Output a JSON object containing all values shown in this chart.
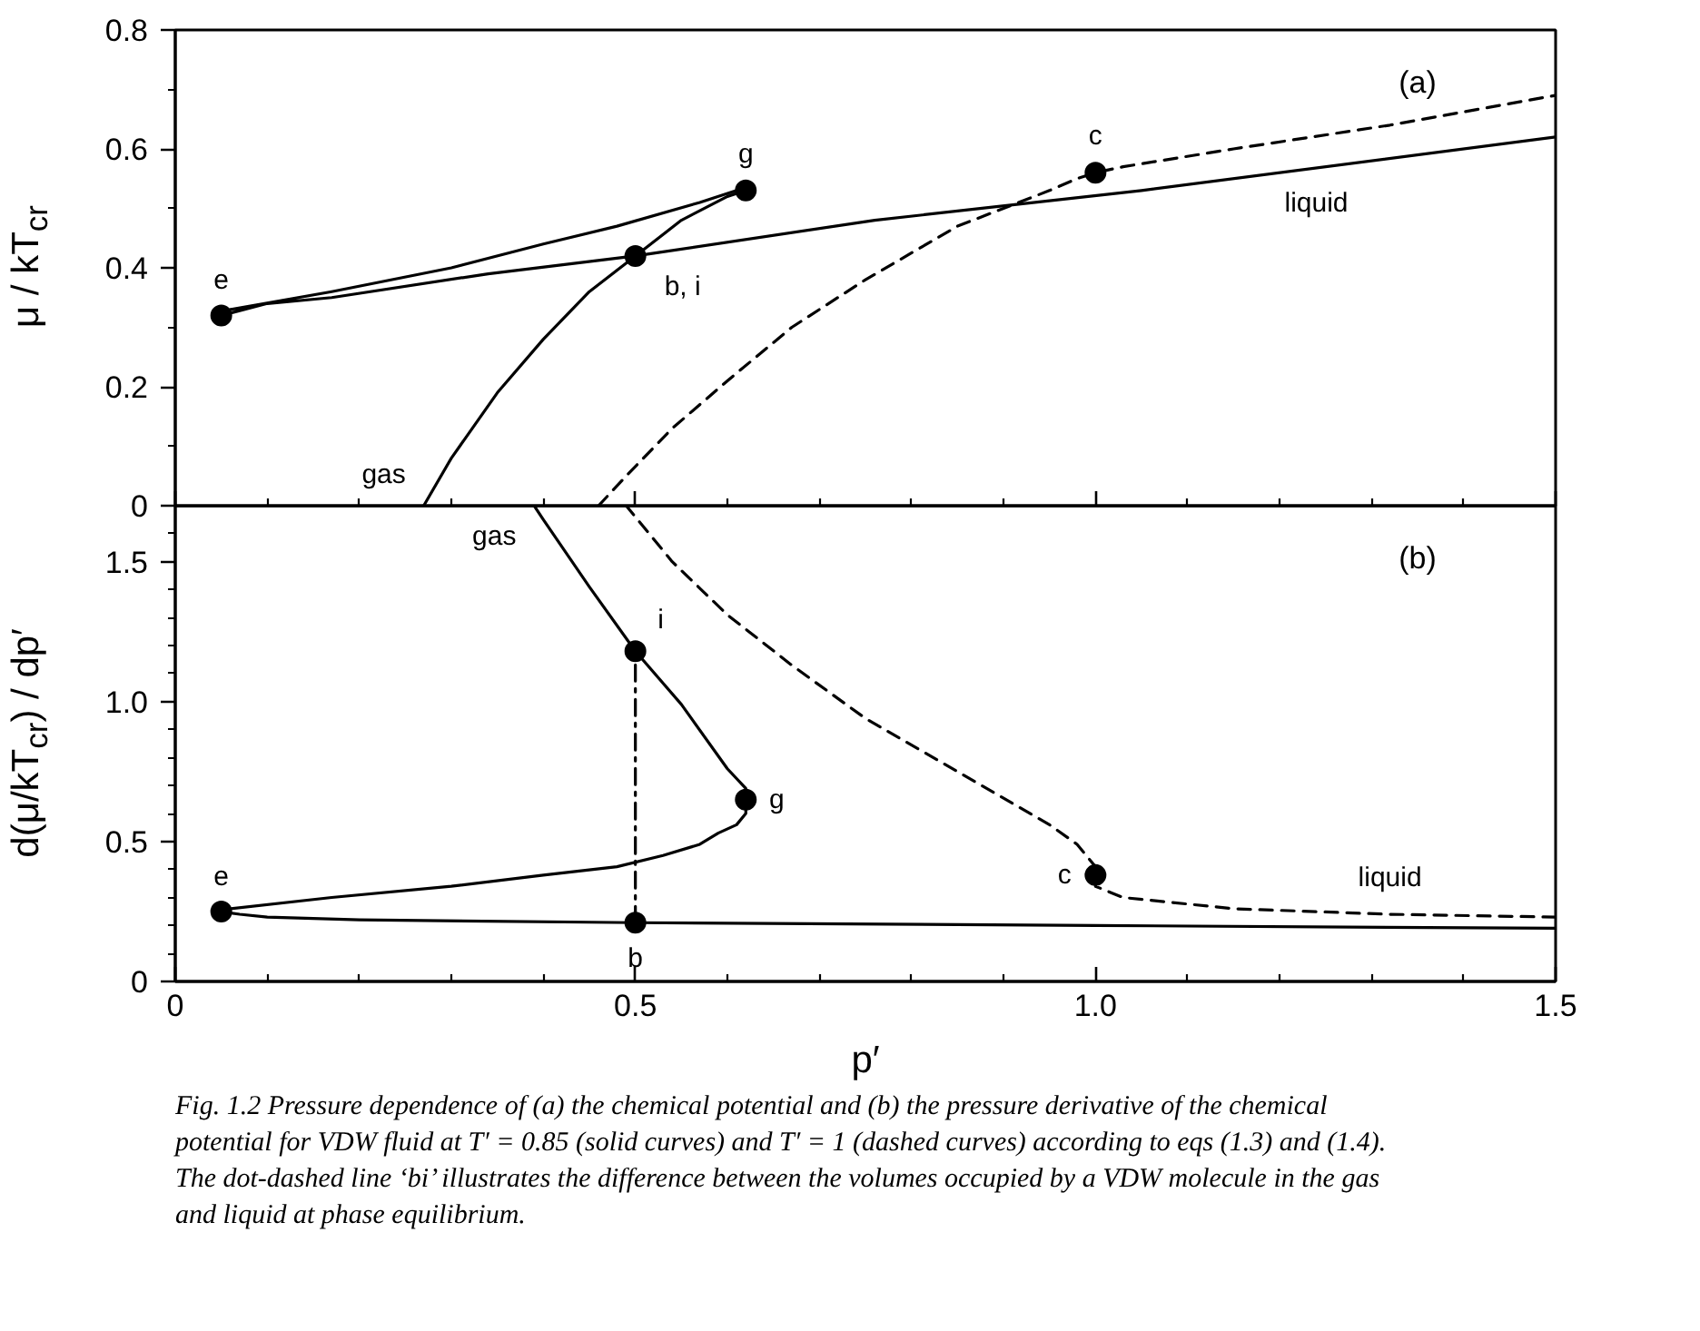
{
  "chart_data": [
    {
      "type": "line",
      "title": "(a)",
      "ylabel": "μ / kT$_{cr}$",
      "xlim": [
        0,
        1.5
      ],
      "ylim": [
        0,
        0.8
      ],
      "xticks": [
        0,
        {
          "value": 0.1,
          "label": null
        },
        {
          "value": 0.2,
          "label": null
        },
        {
          "value": 0.3,
          "label": null
        },
        {
          "value": 0.4,
          "label": null
        },
        0.5,
        {
          "value": 0.6,
          "label": null
        },
        {
          "value": 0.7,
          "label": null
        },
        {
          "value": 0.8,
          "label": null
        },
        {
          "value": 0.9,
          "label": null
        },
        {
          "value": 1,
          "label": "1.0"
        },
        {
          "value": 1.1,
          "label": null
        },
        {
          "value": 1.2,
          "label": null
        },
        {
          "value": 1.3,
          "label": null
        },
        {
          "value": 1.4,
          "label": null
        },
        1.5
      ],
      "yticks": [
        0,
        {
          "value": 0.1,
          "label": null
        },
        0.2,
        {
          "value": 0.3,
          "label": null
        },
        0.4,
        {
          "value": 0.5,
          "label": null
        },
        0.6,
        {
          "value": 0.7,
          "label": null
        },
        0.8
      ],
      "tick_labels": "y",
      "grid": false,
      "series": [
        {
          "color": "#000000",
          "line_style": "solid",
          "x": [
            0.27,
            0.3,
            0.35,
            0.4,
            0.45,
            0.5,
            0.55,
            0.6,
            0.62,
            0.61,
            0.57,
            0.48,
            0.4,
            0.3,
            0.17,
            0.06,
            0.05,
            0.1,
            0.17,
            0.34,
            0.5,
            0.76,
            1.05,
            1.5
          ],
          "values": [
            0.0,
            0.08,
            0.19,
            0.28,
            0.36,
            0.42,
            0.48,
            0.52,
            0.53,
            0.53,
            0.51,
            0.47,
            0.44,
            0.4,
            0.36,
            0.33,
            0.32,
            0.34,
            0.35,
            0.39,
            0.42,
            0.48,
            0.53,
            0.62
          ]
        },
        {
          "color": "#000000",
          "line_style": "dashed",
          "x": [
            0.46,
            0.49,
            0.54,
            0.6,
            0.67,
            0.75,
            0.85,
            0.95,
            0.98,
            1.0,
            1.03,
            1.15,
            1.32,
            1.5
          ],
          "values": [
            0.0,
            0.05,
            0.13,
            0.21,
            0.3,
            0.38,
            0.47,
            0.53,
            0.55,
            0.56,
            0.57,
            0.6,
            0.64,
            0.69
          ]
        },
        {
          "type": "scatter",
          "marker": "circle",
          "color": "#000000",
          "x": [
            0.05,
            0.5,
            0.62,
            1.0
          ],
          "values": [
            0.32,
            0.42,
            0.53,
            0.56
          ]
        }
      ],
      "annotations": [
        {
          "text": "e",
          "x": 0.05,
          "y": 0.32
        },
        {
          "text": "b, i",
          "x": 0.5,
          "y": 0.42
        },
        {
          "text": "g",
          "x": 0.62,
          "y": 0.53
        },
        {
          "text": "c",
          "x": 1.0,
          "y": 0.56
        },
        {
          "text": "gas",
          "x": 0.27,
          "y": 0.0
        },
        {
          "text": "liquid",
          "x": 1.24,
          "y": 0.57
        }
      ]
    },
    {
      "type": "line",
      "title": "(b)",
      "xlabel": "p′",
      "ylabel": "d(μ/kT$_{cr}$) / dp′",
      "xlim": [
        0,
        1.5
      ],
      "ylim": [
        0,
        1.7
      ],
      "xticks": [
        0,
        {
          "value": 0.1,
          "label": null
        },
        {
          "value": 0.2,
          "label": null
        },
        {
          "value": 0.3,
          "label": null
        },
        {
          "value": 0.4,
          "label": null
        },
        0.5,
        {
          "value": 0.6,
          "label": null
        },
        {
          "value": 0.7,
          "label": null
        },
        {
          "value": 0.8,
          "label": null
        },
        {
          "value": 0.9,
          "label": null
        },
        {
          "value": 1,
          "label": "1.0"
        },
        {
          "value": 1.1,
          "label": null
        },
        {
          "value": 1.2,
          "label": null
        },
        {
          "value": 1.3,
          "label": null
        },
        {
          "value": 1.4,
          "label": null
        },
        1.5
      ],
      "yticks": [
        0,
        {
          "value": 0.1,
          "label": null
        },
        {
          "value": 0.2,
          "label": null
        },
        {
          "value": 0.3,
          "label": null
        },
        {
          "value": 0.4,
          "label": null
        },
        0.5,
        {
          "value": 0.6,
          "label": null
        },
        {
          "value": 0.7,
          "label": null
        },
        {
          "value": 0.8,
          "label": null
        },
        {
          "value": 0.9,
          "label": null
        },
        {
          "value": 1,
          "label": "1.0"
        },
        {
          "value": 1.1,
          "label": null
        },
        {
          "value": 1.2,
          "label": null
        },
        {
          "value": 1.3,
          "label": null
        },
        {
          "value": 1.4,
          "label": null
        },
        1.5,
        {
          "value": 1.6,
          "label": null
        }
      ],
      "grid": false,
      "series": [
        {
          "color": "#000000",
          "line_style": "solid",
          "x": [
            1.5,
            1.0,
            0.5,
            0.2,
            0.1,
            0.07,
            0.05,
            0.06,
            0.17,
            0.3,
            0.4,
            0.48,
            0.53,
            0.57,
            0.59,
            0.61,
            0.62,
            0.62,
            0.62,
            0.6,
            0.55,
            0.5,
            0.45,
            0.4,
            0.39
          ],
          "values": [
            0.19,
            0.2,
            0.21,
            0.22,
            0.23,
            0.24,
            0.25,
            0.26,
            0.3,
            0.34,
            0.38,
            0.41,
            0.45,
            0.49,
            0.53,
            0.56,
            0.6,
            0.65,
            0.69,
            0.76,
            0.99,
            1.18,
            1.41,
            1.65,
            1.7
          ]
        },
        {
          "color": "#000000",
          "line_style": "dashed",
          "x": [
            1.5,
            1.32,
            1.15,
            1.03,
            1.0,
            1.0,
            1.0,
            0.98,
            0.95,
            0.85,
            0.75,
            0.67,
            0.6,
            0.54,
            0.49
          ],
          "values": [
            0.23,
            0.24,
            0.26,
            0.3,
            0.34,
            0.38,
            0.41,
            0.49,
            0.56,
            0.75,
            0.94,
            1.13,
            1.31,
            1.5,
            1.7
          ]
        },
        {
          "color": "#000000",
          "line_style": "dashdot",
          "x": [
            0.5,
            0.5
          ],
          "values": [
            0.21,
            1.18
          ]
        },
        {
          "type": "scatter",
          "marker": "circle",
          "color": "#000000",
          "x": [
            0.05,
            0.5,
            0.5,
            0.62,
            1.0
          ],
          "values": [
            0.25,
            0.21,
            1.18,
            0.65,
            0.38
          ]
        }
      ],
      "annotations": [
        {
          "text": "e",
          "x": 0.05,
          "y": 0.25
        },
        {
          "text": "b",
          "x": 0.5,
          "y": 0.21
        },
        {
          "text": "i",
          "x": 0.5,
          "y": 1.18
        },
        {
          "text": "g",
          "x": 0.62,
          "y": 0.65
        },
        {
          "text": "c",
          "x": 1.0,
          "y": 0.38
        },
        {
          "text": "gas",
          "x": 0.39,
          "y": 1.7
        },
        {
          "text": "liquid",
          "x": 1.32,
          "y": 0.24
        },
        "Fig. 1.2  Pressure dependence of (a) the chemical potential and (b) the pressure derivative of the chemical potential for VDW fluid at T′ = 0.85 (solid curves) and T′ = 1 (dashed curves) according to eqs (1.3) and (1.4). The dot-dashed line ‘bi’ illustrates the difference between the volumes occupied by a VDW molecule in the gas and liquid at phase equilibrium."
      ]
    }
  ]
}
